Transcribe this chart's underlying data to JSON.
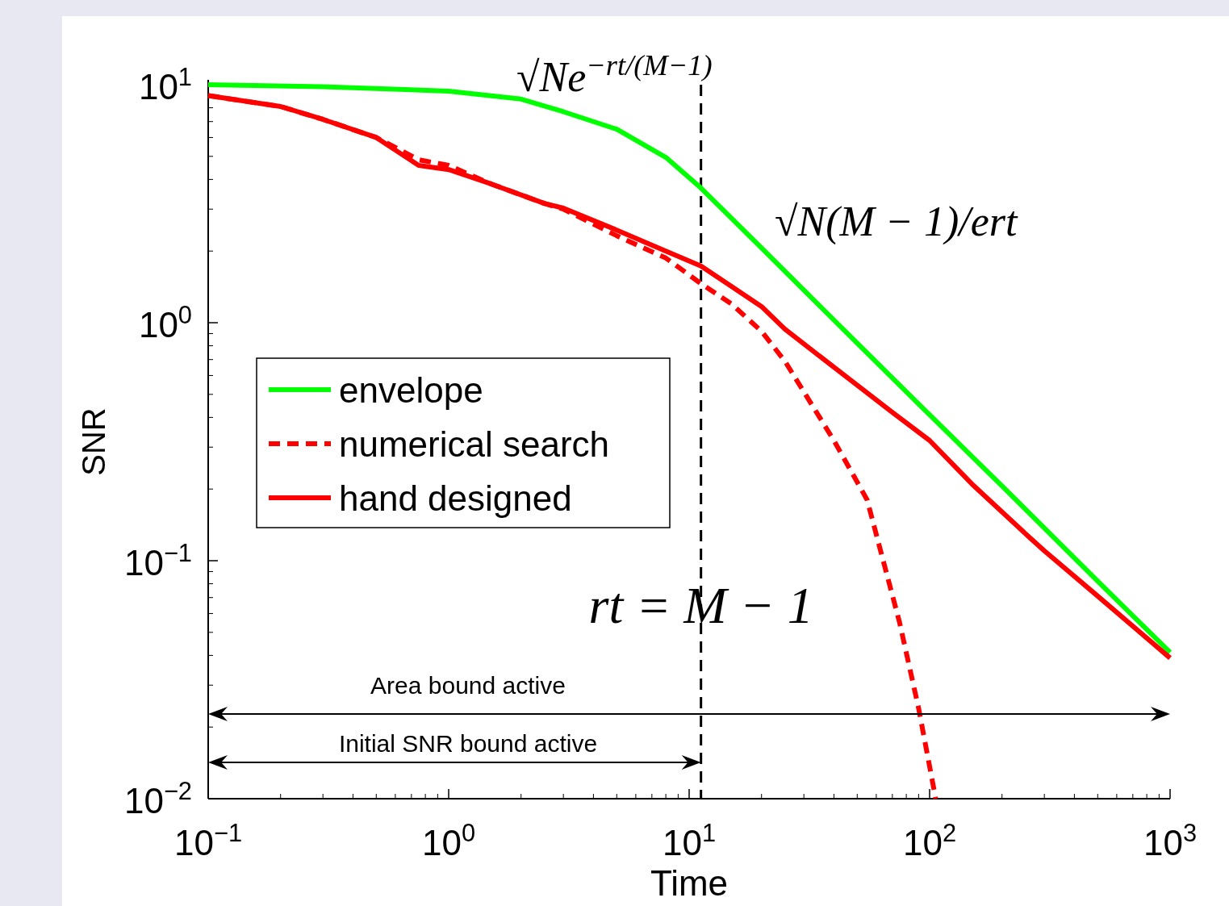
{
  "chart_data": {
    "type": "line",
    "xlabel": "Time",
    "ylabel": "SNR",
    "log": "xy",
    "xlim": [
      0.1,
      1000
    ],
    "ylim": [
      0.01,
      10
    ],
    "xticks": [
      {
        "value": 0.1,
        "label": "10$^{−1}$"
      },
      {
        "value": 1,
        "label": "10$^{0}$"
      },
      {
        "value": 10,
        "label": "10$^{1}$"
      },
      {
        "value": 100,
        "label": "10$^{2}$"
      },
      {
        "value": 1000,
        "label": "10$^{3}$"
      }
    ],
    "yticks": [
      {
        "value": 0.01,
        "label": "10$^{−2}$"
      },
      {
        "value": 0.1,
        "label": "10$^{−1}$"
      },
      {
        "value": 1,
        "label": "10$^{0}$"
      },
      {
        "value": 10,
        "label": "10$^{1}$"
      }
    ],
    "grid": false,
    "legend": "left",
    "marker": "none",
    "series": [
      {
        "name": "envelope",
        "color": "#00ff00",
        "line_style": "solid",
        "x": [
          0.1,
          0.3,
          1,
          2,
          3,
          5,
          8,
          11.2,
          20,
          30,
          50,
          100,
          200,
          500,
          1000
        ],
        "values": [
          10,
          9.8,
          9.4,
          8.7,
          7.7,
          6.5,
          4.95,
          3.68,
          2.06,
          1.37,
          0.82,
          0.41,
          0.206,
          0.082,
          0.0412
        ]
      },
      {
        "name": "numerical search",
        "color": "#ff0000",
        "line_style": "dashed",
        "x": [
          0.1,
          0.2,
          0.3,
          0.5,
          0.75,
          1,
          1.5,
          2.5,
          3,
          5,
          8,
          11.2,
          15,
          20,
          25,
          40,
          55,
          65,
          75,
          90,
          106
        ],
        "values": [
          9.0,
          8.1,
          7.15,
          6.0,
          4.84,
          4.58,
          3.83,
          3.17,
          3.0,
          2.32,
          1.87,
          1.46,
          1.2,
          0.92,
          0.69,
          0.32,
          0.18,
          0.095,
          0.055,
          0.024,
          0.01
        ]
      },
      {
        "name": "hand designed",
        "color": "#ff0000",
        "line_style": "solid",
        "x": [
          0.1,
          0.2,
          0.3,
          0.5,
          0.75,
          1,
          1.5,
          2.5,
          3,
          5,
          8,
          11.2,
          15,
          20,
          25,
          40,
          70,
          100,
          150,
          250,
          300,
          500,
          1000
        ],
        "values": [
          9.0,
          8.1,
          7.15,
          6.0,
          4.58,
          4.4,
          3.83,
          3.17,
          3.03,
          2.45,
          2.0,
          1.73,
          1.42,
          1.17,
          0.94,
          0.65,
          0.42,
          0.32,
          0.21,
          0.13,
          0.11,
          0.071,
          0.039
        ]
      }
    ],
    "ref_lines": [
      {
        "axis": "x",
        "value": 11.2,
        "label": "rt = M − 1",
        "color": "#000000",
        "line_style": "dashed"
      }
    ],
    "annotations": [
      "√Ne$^{−rt/(M−1)}$",
      "√N(M − 1)/ert",
      "Area bound active",
      "Initial SNR bound active"
    ]
  }
}
